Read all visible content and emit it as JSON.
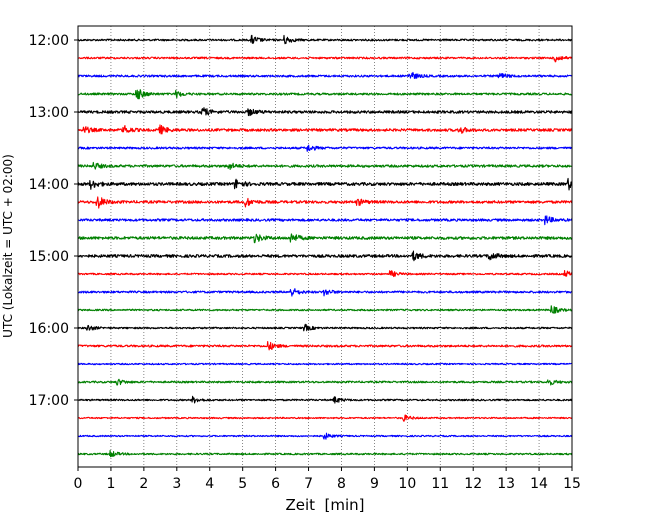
{
  "chart_data": {
    "type": "line",
    "title": "",
    "xlabel": "Zeit  [min]",
    "ylabel": "UTC (Lokalzeit = UTC + 02:00)",
    "xlim": [
      0,
      15
    ],
    "x_ticks": [
      "0",
      "1",
      "2",
      "3",
      "4",
      "5",
      "6",
      "7",
      "8",
      "9",
      "10",
      "11",
      "12",
      "13",
      "14",
      "15"
    ],
    "y_ticks": [
      "12:00",
      "13:00",
      "14:00",
      "15:00",
      "16:00",
      "17:00"
    ],
    "x_grid": "dotted",
    "trace_interval_minutes": 15,
    "trace_count": 24,
    "color_cycle": [
      "#000000",
      "#ff0000",
      "#0000ff",
      "#008000"
    ],
    "traces": [
      {
        "start": "12:00",
        "color": "#000000",
        "noise": 0.9,
        "events": [
          {
            "t": 5.3,
            "amp": 4
          },
          {
            "t": 6.3,
            "amp": 4
          }
        ]
      },
      {
        "start": "12:15",
        "color": "#ff0000",
        "noise": 0.9,
        "events": [
          {
            "t": 14.5,
            "amp": 4
          }
        ]
      },
      {
        "start": "12:30",
        "color": "#0000ff",
        "noise": 1.0,
        "events": [
          {
            "t": 10.1,
            "amp": 4
          },
          {
            "t": 12.8,
            "amp": 3
          }
        ]
      },
      {
        "start": "12:45",
        "color": "#008000",
        "noise": 1.0,
        "events": [
          {
            "t": 1.8,
            "amp": 6
          },
          {
            "t": 3.0,
            "amp": 3
          }
        ]
      },
      {
        "start": "13:00",
        "color": "#000000",
        "noise": 1.3,
        "events": [
          {
            "t": 3.8,
            "amp": 4
          },
          {
            "t": 5.2,
            "amp": 3
          }
        ]
      },
      {
        "start": "13:15",
        "color": "#ff0000",
        "noise": 1.3,
        "events": [
          {
            "t": 0.2,
            "amp": 3
          },
          {
            "t": 1.4,
            "amp": 4
          },
          {
            "t": 2.5,
            "amp": 4
          },
          {
            "t": 11.6,
            "amp": 3
          }
        ]
      },
      {
        "start": "13:30",
        "color": "#0000ff",
        "noise": 1.0,
        "events": [
          {
            "t": 7.0,
            "amp": 3
          }
        ]
      },
      {
        "start": "13:45",
        "color": "#008000",
        "noise": 1.2,
        "events": [
          {
            "t": 0.5,
            "amp": 3
          },
          {
            "t": 4.6,
            "amp": 3
          }
        ]
      },
      {
        "start": "14:00",
        "color": "#000000",
        "noise": 1.5,
        "events": [
          {
            "t": 0.4,
            "amp": 4
          },
          {
            "t": 4.8,
            "amp": 4
          },
          {
            "t": 14.9,
            "amp": 5
          }
        ]
      },
      {
        "start": "14:15",
        "color": "#ff0000",
        "noise": 1.3,
        "events": [
          {
            "t": 0.6,
            "amp": 6
          },
          {
            "t": 5.1,
            "amp": 4
          },
          {
            "t": 8.5,
            "amp": 3
          }
        ]
      },
      {
        "start": "14:30",
        "color": "#0000ff",
        "noise": 1.2,
        "events": [
          {
            "t": 14.2,
            "amp": 4
          }
        ]
      },
      {
        "start": "14:45",
        "color": "#008000",
        "noise": 1.4,
        "events": [
          {
            "t": 5.4,
            "amp": 4
          },
          {
            "t": 6.5,
            "amp": 4
          }
        ]
      },
      {
        "start": "15:00",
        "color": "#000000",
        "noise": 1.4,
        "events": [
          {
            "t": 10.2,
            "amp": 4
          },
          {
            "t": 12.5,
            "amp": 4
          }
        ]
      },
      {
        "start": "15:15",
        "color": "#ff0000",
        "noise": 0.8,
        "events": [
          {
            "t": 9.5,
            "amp": 3
          },
          {
            "t": 14.8,
            "amp": 3
          }
        ]
      },
      {
        "start": "15:30",
        "color": "#0000ff",
        "noise": 1.0,
        "events": [
          {
            "t": 6.5,
            "amp": 4
          },
          {
            "t": 7.5,
            "amp": 3
          }
        ]
      },
      {
        "start": "15:45",
        "color": "#008000",
        "noise": 0.8,
        "events": [
          {
            "t": 14.4,
            "amp": 4
          }
        ]
      },
      {
        "start": "16:00",
        "color": "#000000",
        "noise": 0.8,
        "events": [
          {
            "t": 0.3,
            "amp": 3
          },
          {
            "t": 6.9,
            "amp": 3
          }
        ]
      },
      {
        "start": "16:15",
        "color": "#ff0000",
        "noise": 1.0,
        "events": [
          {
            "t": 5.8,
            "amp": 4
          }
        ]
      },
      {
        "start": "16:30",
        "color": "#0000ff",
        "noise": 0.7,
        "events": []
      },
      {
        "start": "16:45",
        "color": "#008000",
        "noise": 0.9,
        "events": [
          {
            "t": 1.2,
            "amp": 3
          },
          {
            "t": 14.3,
            "amp": 3
          }
        ]
      },
      {
        "start": "17:00",
        "color": "#000000",
        "noise": 0.8,
        "events": [
          {
            "t": 3.5,
            "amp": 3
          },
          {
            "t": 7.8,
            "amp": 3
          }
        ]
      },
      {
        "start": "17:15",
        "color": "#ff0000",
        "noise": 0.7,
        "events": [
          {
            "t": 9.9,
            "amp": 3
          }
        ]
      },
      {
        "start": "17:30",
        "color": "#0000ff",
        "noise": 0.7,
        "events": [
          {
            "t": 7.5,
            "amp": 3
          }
        ]
      },
      {
        "start": "17:45",
        "color": "#008000",
        "noise": 0.8,
        "events": [
          {
            "t": 1.0,
            "amp": 3
          }
        ]
      }
    ]
  }
}
